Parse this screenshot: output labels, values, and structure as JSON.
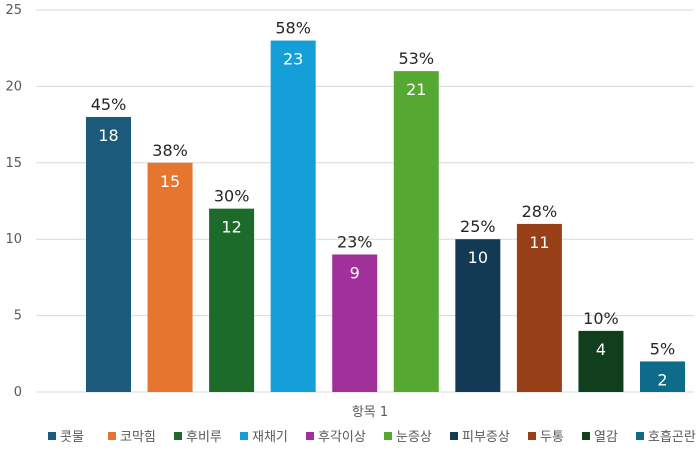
{
  "chart_data": {
    "type": "bar",
    "title": "",
    "xlabel": "",
    "ylabel": "",
    "ylim": [
      0,
      25
    ],
    "y_ticks": [
      0,
      5,
      10,
      15,
      20,
      25
    ],
    "grid": true,
    "legend_position": "bottom",
    "x_category_label": "항목 1",
    "series": [
      {
        "name": "콧물",
        "value": 18,
        "percent_label": "45%",
        "color": "#1b5a7a"
      },
      {
        "name": "코막힘",
        "value": 15,
        "percent_label": "38%",
        "color": "#e67530"
      },
      {
        "name": "후비루",
        "value": 12,
        "percent_label": "30%",
        "color": "#1d6b2b"
      },
      {
        "name": "재채기",
        "value": 23,
        "percent_label": "58%",
        "color": "#159fd8"
      },
      {
        "name": "후각이상",
        "value": 9,
        "percent_label": "23%",
        "color": "#a1309a"
      },
      {
        "name": "눈증상",
        "value": 21,
        "percent_label": "53%",
        "color": "#55a832"
      },
      {
        "name": "피부증상",
        "value": 10,
        "percent_label": "25%",
        "color": "#133a54"
      },
      {
        "name": "두통",
        "value": 11,
        "percent_label": "28%",
        "color": "#973f16"
      },
      {
        "name": "열감",
        "value": 4,
        "percent_label": "10%",
        "color": "#113f1d"
      },
      {
        "name": "호흡곤란",
        "value": 2,
        "percent_label": "5%",
        "color": "#0f6b8a"
      }
    ]
  }
}
